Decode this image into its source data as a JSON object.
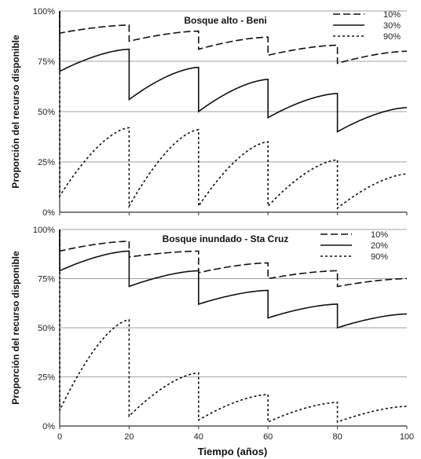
{
  "figure": {
    "xlabel": "Tiempo (años)"
  },
  "chart_data": [
    {
      "type": "line",
      "title": "Bosque alto - Beni",
      "ylabel": "Proporción del recurso disponible",
      "xlim": [
        0,
        100
      ],
      "ylim": [
        0,
        1
      ],
      "x_ticks": [
        "0",
        "20",
        "40",
        "60",
        "80",
        "100"
      ],
      "y_ticks": [
        "0%",
        "25%",
        "50%",
        "75%",
        "100%"
      ],
      "grid": "horizontal",
      "legend": "top-right",
      "series": [
        {
          "name": "10%",
          "style": "dashed",
          "segments": [
            {
              "start": 0,
              "end": 20,
              "from": 0.89,
              "to": 0.93
            },
            {
              "start": 20,
              "end": 40,
              "from": 0.85,
              "to": 0.9
            },
            {
              "start": 40,
              "end": 60,
              "from": 0.81,
              "to": 0.87
            },
            {
              "start": 60,
              "end": 80,
              "from": 0.78,
              "to": 0.83
            },
            {
              "start": 80,
              "end": 100,
              "from": 0.74,
              "to": 0.8
            }
          ]
        },
        {
          "name": "30%",
          "style": "solid",
          "segments": [
            {
              "start": 0,
              "end": 20,
              "from": 0.7,
              "to": 0.81
            },
            {
              "start": 20,
              "end": 40,
              "from": 0.56,
              "to": 0.72
            },
            {
              "start": 40,
              "end": 60,
              "from": 0.5,
              "to": 0.66
            },
            {
              "start": 60,
              "end": 80,
              "from": 0.47,
              "to": 0.59
            },
            {
              "start": 80,
              "end": 100,
              "from": 0.4,
              "to": 0.52
            }
          ]
        },
        {
          "name": "90%",
          "style": "dotted",
          "segments": [
            {
              "start": 0,
              "end": 20,
              "from": 0.08,
              "to": 0.42
            },
            {
              "start": 20,
              "end": 40,
              "from": 0.03,
              "to": 0.41
            },
            {
              "start": 40,
              "end": 60,
              "from": 0.03,
              "to": 0.35
            },
            {
              "start": 60,
              "end": 80,
              "from": 0.03,
              "to": 0.26
            },
            {
              "start": 80,
              "end": 100,
              "from": 0.02,
              "to": 0.19
            }
          ]
        }
      ]
    },
    {
      "type": "line",
      "title": "Bosque inundado - Sta Cruz",
      "ylabel": "Proporción del recurso disponible",
      "xlim": [
        0,
        100
      ],
      "ylim": [
        0,
        1
      ],
      "x_ticks": [
        "0",
        "20",
        "40",
        "60",
        "80",
        "100"
      ],
      "y_ticks": [
        "0%",
        "25%",
        "50%",
        "75%",
        "100%"
      ],
      "grid": "horizontal",
      "legend": "top-right",
      "series": [
        {
          "name": "10%",
          "style": "dashed",
          "segments": [
            {
              "start": 0,
              "end": 20,
              "from": 0.89,
              "to": 0.94
            },
            {
              "start": 20,
              "end": 40,
              "from": 0.86,
              "to": 0.89
            },
            {
              "start": 40,
              "end": 60,
              "from": 0.78,
              "to": 0.83
            },
            {
              "start": 60,
              "end": 80,
              "from": 0.75,
              "to": 0.79
            },
            {
              "start": 80,
              "end": 100,
              "from": 0.71,
              "to": 0.75
            }
          ]
        },
        {
          "name": "20%",
          "style": "solid",
          "segments": [
            {
              "start": 0,
              "end": 20,
              "from": 0.79,
              "to": 0.89
            },
            {
              "start": 20,
              "end": 40,
              "from": 0.71,
              "to": 0.79
            },
            {
              "start": 40,
              "end": 60,
              "from": 0.62,
              "to": 0.69
            },
            {
              "start": 60,
              "end": 80,
              "from": 0.55,
              "to": 0.62
            },
            {
              "start": 80,
              "end": 100,
              "from": 0.5,
              "to": 0.57
            }
          ]
        },
        {
          "name": "90%",
          "style": "dotted",
          "segments": [
            {
              "start": 0,
              "end": 20,
              "from": 0.08,
              "to": 0.54
            },
            {
              "start": 20,
              "end": 40,
              "from": 0.05,
              "to": 0.27
            },
            {
              "start": 40,
              "end": 60,
              "from": 0.03,
              "to": 0.16
            },
            {
              "start": 60,
              "end": 80,
              "from": 0.02,
              "to": 0.12
            },
            {
              "start": 80,
              "end": 100,
              "from": 0.02,
              "to": 0.1
            }
          ]
        }
      ]
    }
  ]
}
